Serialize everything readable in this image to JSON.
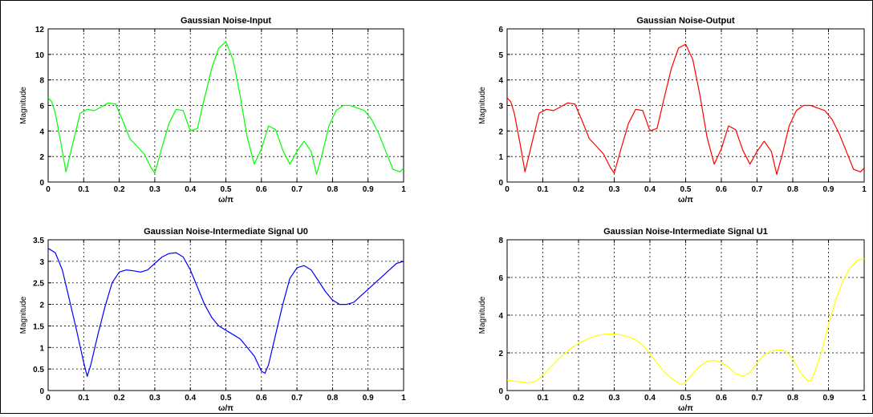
{
  "chart_data": [
    {
      "type": "line",
      "title": "Gaussian Noise-Input",
      "xlabel": "ω/π",
      "ylabel": "Magnitude",
      "xlim": [
        0,
        1
      ],
      "ylim": [
        0,
        12
      ],
      "xticks": [
        "0",
        "0.1",
        "0.2",
        "0.3",
        "0.4",
        "0.5",
        "0.6",
        "0.7",
        "0.8",
        "0.9",
        "1"
      ],
      "yticks": [
        "0",
        "2",
        "4",
        "6",
        "8",
        "10",
        "12"
      ],
      "grid": true,
      "series": [
        {
          "color": "#00ff00",
          "x": [
            0,
            0.01,
            0.02,
            0.035,
            0.05,
            0.07,
            0.09,
            0.11,
            0.13,
            0.15,
            0.17,
            0.19,
            0.21,
            0.23,
            0.25,
            0.27,
            0.29,
            0.3,
            0.32,
            0.34,
            0.36,
            0.38,
            0.4,
            0.42,
            0.44,
            0.46,
            0.48,
            0.5,
            0.52,
            0.54,
            0.56,
            0.58,
            0.6,
            0.62,
            0.64,
            0.66,
            0.68,
            0.7,
            0.72,
            0.74,
            0.755,
            0.77,
            0.79,
            0.81,
            0.83,
            0.85,
            0.87,
            0.89,
            0.91,
            0.93,
            0.95,
            0.97,
            0.99,
            1.0
          ],
          "y": [
            6.6,
            6.3,
            5.4,
            3.2,
            0.8,
            3.1,
            5.4,
            5.7,
            5.6,
            5.9,
            6.2,
            6.1,
            4.8,
            3.4,
            2.8,
            2.2,
            1.1,
            0.7,
            2.7,
            4.6,
            5.7,
            5.6,
            4.0,
            4.2,
            6.6,
            8.9,
            10.5,
            11.0,
            9.6,
            6.8,
            3.5,
            1.4,
            2.6,
            4.4,
            4.1,
            2.5,
            1.4,
            2.4,
            3.2,
            2.4,
            0.6,
            2.1,
            4.4,
            5.6,
            6.0,
            6.0,
            5.8,
            5.6,
            4.9,
            3.8,
            2.4,
            1.0,
            0.8,
            1.1
          ]
        }
      ]
    },
    {
      "type": "line",
      "title": "Gaussian Noise-Output",
      "xlabel": "ω/π",
      "ylabel": "Magnitude",
      "xlim": [
        0,
        1
      ],
      "ylim": [
        0,
        6
      ],
      "xticks": [
        "0",
        "0.1",
        "0.2",
        "0.3",
        "0.4",
        "0.5",
        "0.6",
        "0.7",
        "0.8",
        "0.9",
        "1"
      ],
      "yticks": [
        "0",
        "1",
        "2",
        "3",
        "4",
        "5",
        "6"
      ],
      "grid": true,
      "series": [
        {
          "color": "#ff0000",
          "x": [
            0,
            0.01,
            0.02,
            0.035,
            0.05,
            0.07,
            0.09,
            0.11,
            0.13,
            0.15,
            0.17,
            0.19,
            0.21,
            0.23,
            0.25,
            0.27,
            0.29,
            0.3,
            0.32,
            0.34,
            0.36,
            0.38,
            0.4,
            0.42,
            0.44,
            0.46,
            0.48,
            0.5,
            0.52,
            0.54,
            0.56,
            0.58,
            0.6,
            0.62,
            0.64,
            0.66,
            0.68,
            0.7,
            0.72,
            0.74,
            0.755,
            0.77,
            0.79,
            0.81,
            0.83,
            0.85,
            0.87,
            0.89,
            0.91,
            0.93,
            0.95,
            0.97,
            0.99,
            1.0
          ],
          "y": [
            3.3,
            3.15,
            2.7,
            1.6,
            0.4,
            1.55,
            2.7,
            2.85,
            2.8,
            2.95,
            3.1,
            3.05,
            2.4,
            1.7,
            1.4,
            1.1,
            0.55,
            0.35,
            1.35,
            2.3,
            2.85,
            2.8,
            2.0,
            2.1,
            3.3,
            4.45,
            5.25,
            5.4,
            4.8,
            3.4,
            1.75,
            0.7,
            1.3,
            2.2,
            2.05,
            1.25,
            0.7,
            1.2,
            1.6,
            1.2,
            0.3,
            1.05,
            2.2,
            2.8,
            3.0,
            3.0,
            2.9,
            2.8,
            2.45,
            1.9,
            1.2,
            0.5,
            0.4,
            0.55
          ]
        }
      ]
    },
    {
      "type": "line",
      "title": "Gaussian Noise-Intermediate Signal U0",
      "xlabel": "ω/π",
      "ylabel": "Magnitude",
      "xlim": [
        0,
        1
      ],
      "ylim": [
        0,
        3.5
      ],
      "xticks": [
        "0",
        "0.1",
        "0.2",
        "0.3",
        "0.4",
        "0.5",
        "0.6",
        "0.7",
        "0.8",
        "0.9",
        "1"
      ],
      "yticks": [
        "0",
        "0.5",
        "1",
        "1.5",
        "2",
        "2.5",
        "3",
        "3.5"
      ],
      "grid": true,
      "series": [
        {
          "color": "#0000ff",
          "x": [
            0,
            0.02,
            0.04,
            0.06,
            0.08,
            0.1,
            0.11,
            0.12,
            0.14,
            0.16,
            0.18,
            0.2,
            0.22,
            0.24,
            0.26,
            0.28,
            0.3,
            0.32,
            0.34,
            0.36,
            0.38,
            0.4,
            0.42,
            0.44,
            0.46,
            0.48,
            0.5,
            0.52,
            0.54,
            0.56,
            0.58,
            0.6,
            0.61,
            0.62,
            0.64,
            0.66,
            0.68,
            0.7,
            0.72,
            0.74,
            0.76,
            0.78,
            0.8,
            0.82,
            0.84,
            0.86,
            0.88,
            0.9,
            0.92,
            0.94,
            0.96,
            0.98,
            1.0
          ],
          "y": [
            3.3,
            3.2,
            2.8,
            2.1,
            1.4,
            0.65,
            0.33,
            0.6,
            1.3,
            1.95,
            2.5,
            2.75,
            2.8,
            2.78,
            2.75,
            2.8,
            2.95,
            3.1,
            3.18,
            3.2,
            3.1,
            2.8,
            2.4,
            2.0,
            1.7,
            1.5,
            1.4,
            1.3,
            1.2,
            1.0,
            0.8,
            0.45,
            0.4,
            0.6,
            1.3,
            2.0,
            2.6,
            2.85,
            2.9,
            2.8,
            2.55,
            2.3,
            2.1,
            2.0,
            2.0,
            2.05,
            2.2,
            2.35,
            2.5,
            2.65,
            2.8,
            2.95,
            3.0
          ]
        }
      ]
    },
    {
      "type": "line",
      "title": "Gaussian Noise-Intermediate Signal U1",
      "xlabel": "ω/π",
      "ylabel": "Magnitude",
      "xlim": [
        0,
        1
      ],
      "ylim": [
        0,
        8
      ],
      "xticks": [
        "0",
        "0.1",
        "0.2",
        "0.3",
        "0.4",
        "0.5",
        "0.6",
        "0.7",
        "0.8",
        "0.9",
        "1"
      ],
      "yticks": [
        "0",
        "2",
        "4",
        "6",
        "8"
      ],
      "grid": true,
      "series": [
        {
          "color": "#ffff00",
          "x": [
            0,
            0.02,
            0.04,
            0.06,
            0.08,
            0.1,
            0.12,
            0.14,
            0.16,
            0.18,
            0.2,
            0.22,
            0.24,
            0.26,
            0.28,
            0.3,
            0.32,
            0.34,
            0.36,
            0.38,
            0.4,
            0.42,
            0.44,
            0.46,
            0.48,
            0.49,
            0.5,
            0.52,
            0.54,
            0.56,
            0.58,
            0.6,
            0.62,
            0.64,
            0.66,
            0.68,
            0.7,
            0.72,
            0.74,
            0.76,
            0.78,
            0.8,
            0.82,
            0.84,
            0.85,
            0.86,
            0.88,
            0.9,
            0.92,
            0.94,
            0.96,
            0.98,
            1.0
          ],
          "y": [
            0.55,
            0.5,
            0.45,
            0.4,
            0.5,
            0.8,
            1.2,
            1.6,
            1.95,
            2.25,
            2.5,
            2.7,
            2.85,
            2.95,
            3.0,
            3.0,
            2.95,
            2.85,
            2.7,
            2.4,
            1.95,
            1.45,
            1.0,
            0.65,
            0.4,
            0.3,
            0.45,
            0.9,
            1.3,
            1.55,
            1.6,
            1.5,
            1.25,
            0.9,
            0.75,
            0.95,
            1.45,
            1.9,
            2.1,
            2.15,
            2.1,
            1.7,
            1.0,
            0.55,
            0.5,
            0.9,
            2.0,
            3.5,
            4.8,
            5.8,
            6.5,
            6.9,
            7.0
          ]
        }
      ]
    }
  ]
}
